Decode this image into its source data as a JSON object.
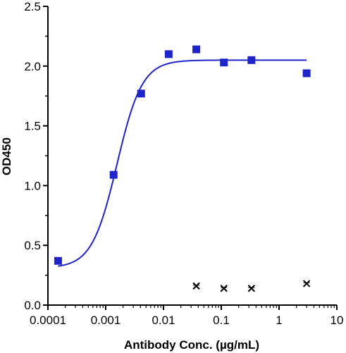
{
  "chart_data": {
    "type": "scatter",
    "xlabel": "Antibody Conc. (µg/mL)",
    "ylabel": "OD450",
    "x_scale": "log",
    "xlim": [
      0.0001,
      10
    ],
    "ylim": [
      0,
      2.5
    ],
    "x_ticks": [
      0.0001,
      0.001,
      0.01,
      0.1,
      1,
      10
    ],
    "x_tick_labels": [
      "0.0001",
      "0.001",
      "0.01",
      "0.1",
      "1",
      "10"
    ],
    "y_ticks": [
      0,
      0.5,
      1.0,
      1.5,
      2.0,
      2.5
    ],
    "y_tick_labels": [
      "0.0",
      "0.5",
      "1.0",
      "1.5",
      "2.0",
      "2.5"
    ],
    "grid": false,
    "series": [
      {
        "marker": "square",
        "color": "#1f24c8",
        "x": [
          0.00015,
          0.00137,
          0.0041,
          0.0123,
          0.037,
          0.111,
          0.333,
          3.0
        ],
        "y": [
          0.37,
          1.09,
          1.77,
          2.1,
          2.14,
          2.03,
          2.05,
          1.94
        ],
        "fit": {
          "model": "4PL",
          "bottom": 0.31,
          "top": 2.05,
          "ec50": 0.00157,
          "hill": 2.0,
          "color": "#1f24c8"
        }
      },
      {
        "marker": "x",
        "color": "#000000",
        "x": [
          0.037,
          0.111,
          0.333,
          3.0
        ],
        "y": [
          0.16,
          0.14,
          0.14,
          0.18
        ]
      }
    ]
  }
}
